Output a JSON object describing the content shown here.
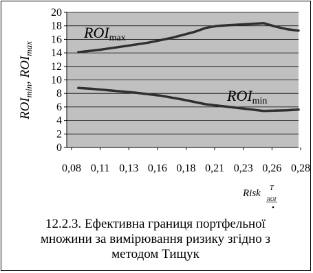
{
  "chart_data": {
    "type": "line",
    "x_ticks": [
      "0,08",
      "0,11",
      "0,13",
      "0,16",
      "0,18",
      "0,21",
      "0,23",
      "0,26",
      "0,28"
    ],
    "y_ticks": [
      "0",
      "2",
      "4",
      "6",
      "8",
      "10",
      "12",
      "14",
      "16",
      "18",
      "20"
    ],
    "ylim": [
      0,
      20
    ],
    "xlim": [
      0.08,
      0.28
    ],
    "grid": true,
    "y_label": {
      "base": "ROI",
      "sub1": "min",
      "sep": ", ",
      "base2": "ROI",
      "sub2": "max"
    },
    "x_label": {
      "base": "Risk",
      "sup": "T",
      "sub": "ROI"
    },
    "series": [
      {
        "label_base": "ROI",
        "label_sub": "max",
        "color": "#2f2f2f",
        "points": [
          [
            0.09,
            14.1
          ],
          [
            0.11,
            14.5
          ],
          [
            0.13,
            15.0
          ],
          [
            0.15,
            15.5
          ],
          [
            0.17,
            16.2
          ],
          [
            0.19,
            17.1
          ],
          [
            0.2,
            17.7
          ],
          [
            0.21,
            18.0
          ],
          [
            0.23,
            18.2
          ],
          [
            0.25,
            18.4
          ],
          [
            0.26,
            17.9
          ],
          [
            0.27,
            17.5
          ],
          [
            0.28,
            17.3
          ]
        ]
      },
      {
        "label_base": "ROI",
        "label_sub": "min",
        "color": "#2f2f2f",
        "points": [
          [
            0.09,
            8.8
          ],
          [
            0.1,
            8.7
          ],
          [
            0.12,
            8.4
          ],
          [
            0.14,
            8.1
          ],
          [
            0.16,
            7.7
          ],
          [
            0.18,
            7.1
          ],
          [
            0.2,
            6.4
          ],
          [
            0.22,
            6.0
          ],
          [
            0.24,
            5.6
          ],
          [
            0.25,
            5.4
          ],
          [
            0.27,
            5.5
          ],
          [
            0.28,
            5.6
          ]
        ]
      }
    ]
  },
  "caption": {
    "line1": "12.2.3. Ефективна границя портфельної",
    "line2": "множини за вимірювання ризику згідно з",
    "line3": "методом Тищук"
  },
  "colors": {
    "plot_bg": "#c0c0c0",
    "grid": "#000000",
    "line": "#2f2f2f"
  }
}
